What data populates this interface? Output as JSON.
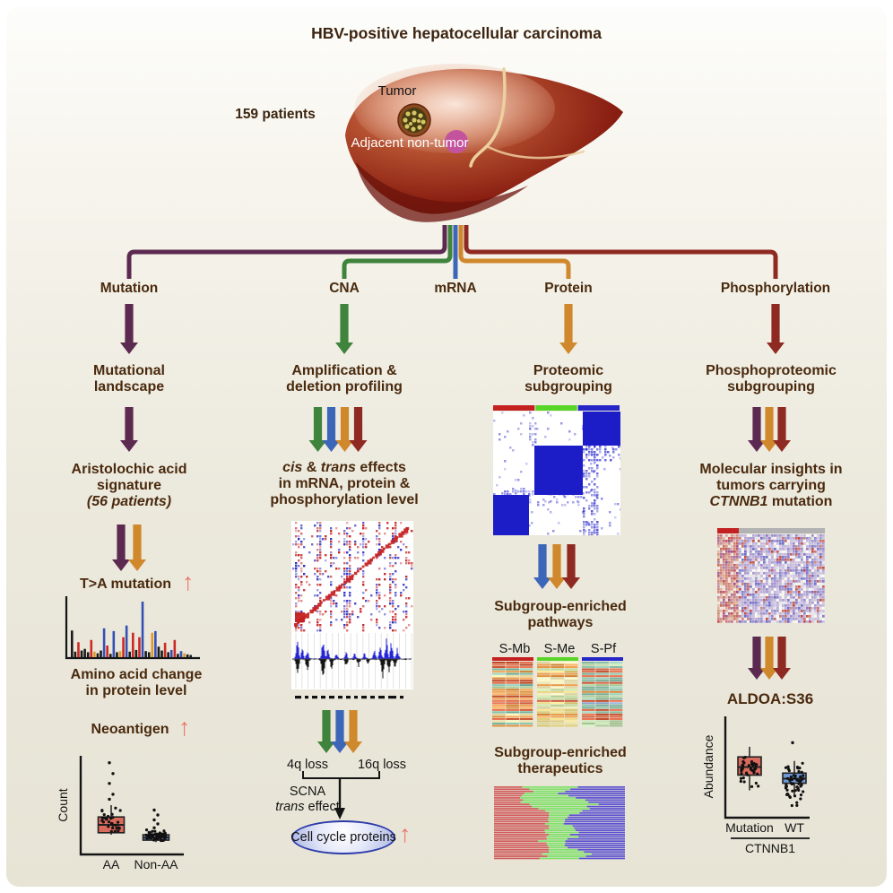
{
  "title": "HBV-positive hepatocellular carcinoma",
  "glyphs": {
    "up": "↑"
  },
  "liver": {
    "patients": "159 patients",
    "tumor": "Tumor",
    "adjacent": "Adjacent non-tumor"
  },
  "branches": {
    "mutation": "Mutation",
    "cna": "CNA",
    "mrna": "mRNA",
    "protein": "Protein",
    "phospho": "Phosphorylation"
  },
  "colors": {
    "mutation": "#5c2a50",
    "cna": "#3f833c",
    "mrna": "#3c66b8",
    "protein": "#d0882c",
    "phospho": "#8f2a22",
    "up_arrow": "#e8776e",
    "heading_text": "#4a2a0e",
    "axis": "#141414",
    "box_red": "#d96a5c",
    "box_blue": "#6f9bd8"
  },
  "mutation_col": {
    "landscape1": "Mutational",
    "landscape2": "landscape",
    "aa1": "Aristolochic acid",
    "aa2": "signature",
    "aa3": "(56 patients)",
    "ta": "T>A mutation",
    "amino1": "Amino acid change",
    "amino2": "in protein level",
    "neoantigen": "Neoantigen",
    "box_ylabel": "Count",
    "box_cat1": "AA",
    "box_cat2": "Non-AA"
  },
  "cna_col": {
    "amp1": "Amplification &",
    "amp2": "deletion profiling",
    "cis": "cis",
    "and_": " & ",
    "trans": "trans",
    "effects": " effects",
    "cis2": "in mRNA, protein &",
    "cis3": "phosphorylation level",
    "loss4q": "4q loss",
    "loss16q": "16q loss",
    "scna": "SCNA",
    "scna_trans": "trans",
    "scna_effect": " effect",
    "ellipse_label": "Cell cycle proteins"
  },
  "protein_col": {
    "sub1": "Proteomic",
    "sub2": "subgrouping",
    "path1": "Subgroup-enriched",
    "path2": "pathways",
    "panels": [
      "S-Mb",
      "S-Me",
      "S-Pf"
    ],
    "thera1": "Subgroup-enriched",
    "thera2": "therapeutics"
  },
  "phospho_col": {
    "sub1": "Phosphoproteomic",
    "sub2": "subgrouping",
    "mol1": "Molecular insights in",
    "mol2": "tumors carrying",
    "mol3_gene": "CTNNB1",
    "mol3_rest": " mutation",
    "aldoa": "ALDOA:S36",
    "box_ylabel": "Abundance",
    "box_cat1": "Mutation",
    "box_cat2": "WT",
    "box_group": "CTNNB1"
  },
  "chart_data": [
    {
      "id": "mutation_spectrum",
      "type": "bar",
      "title": "T>A mutation signature spectrum",
      "xlabel": "",
      "ylabel": "",
      "palette": {
        "k": "#1a1a1a",
        "r": "#cc2a25",
        "b": "#3550b5",
        "o": "#e09a2a"
      },
      "bars": [
        [
          "k",
          0.48
        ],
        [
          "k",
          0.1
        ],
        [
          "r",
          0.27
        ],
        [
          "k",
          0.12
        ],
        [
          "k",
          0.15
        ],
        [
          "k",
          0.09
        ],
        [
          "r",
          0.31
        ],
        [
          "o",
          0.1
        ],
        [
          "k",
          0.07
        ],
        [
          "k",
          0.12
        ],
        [
          "b",
          0.52
        ],
        [
          "r",
          0.21
        ],
        [
          "k",
          0.06
        ],
        [
          "b",
          0.47
        ],
        [
          "k",
          0.09
        ],
        [
          "o",
          0.11
        ],
        [
          "r",
          0.36
        ],
        [
          "b",
          0.57
        ],
        [
          "k",
          0.1
        ],
        [
          "r",
          0.44
        ],
        [
          "k",
          0.13
        ],
        [
          "r",
          0.36
        ],
        [
          "b",
          1.0
        ],
        [
          "k",
          0.11
        ],
        [
          "k",
          0.09
        ],
        [
          "o",
          0.44
        ],
        [
          "b",
          0.47
        ],
        [
          "k",
          0.19
        ],
        [
          "k",
          0.12
        ],
        [
          "r",
          0.26
        ],
        [
          "k",
          0.09
        ],
        [
          "b",
          0.13
        ],
        [
          "r",
          0.31
        ],
        [
          "k",
          0.06
        ],
        [
          "b",
          0.11
        ],
        [
          "o",
          0.07
        ],
        [
          "k",
          0.05
        ],
        [
          "k",
          0.04
        ]
      ]
    },
    {
      "id": "aa_count_boxplot",
      "type": "box",
      "ylabel": "Count",
      "categories": [
        "AA",
        "Non-AA"
      ],
      "note": "relative units 0-1, no numeric ticks shown in figure",
      "groups": [
        {
          "label": "AA",
          "color": "#d96a5c",
          "q1": 0.22,
          "median": 0.3,
          "q3": 0.38,
          "whiskers": [
            0.2,
            0.5
          ],
          "outliers": [
            0.56,
            0.61,
            0.72,
            0.82,
            0.93
          ],
          "n_points": 30,
          "scatter": [
            0.2,
            0.52
          ],
          "seed": 11
        },
        {
          "label": "Non-AA",
          "color": "#6f9bd8",
          "q1": 0.145,
          "median": 0.17,
          "q3": 0.2,
          "whiskers": [
            0.125,
            0.22
          ],
          "outliers": [
            0.27,
            0.31,
            0.35,
            0.4,
            0.45
          ],
          "n_points": 46,
          "scatter": [
            0.12,
            0.26
          ],
          "seed": 12
        }
      ]
    },
    {
      "id": "aldoa_boxplot",
      "type": "box",
      "title": "ALDOA:S36",
      "ylabel": "Abundance",
      "categories": [
        "Mutation",
        "WT"
      ],
      "group_axis_label": "CTNNB1",
      "note": "relative units 0-1, no numeric ticks shown in figure",
      "groups": [
        {
          "label": "Mutation",
          "color": "#d96a5c",
          "q1": 0.42,
          "median": 0.5,
          "q3": 0.6,
          "whiskers": [
            0.27,
            0.7
          ],
          "outliers": [],
          "n_points": 36,
          "scatter": [
            0.26,
            0.7
          ],
          "seed": 21
        },
        {
          "label": "WT",
          "color": "#6f9bd8",
          "q1": 0.34,
          "median": 0.385,
          "q3": 0.44,
          "whiskers": [
            0.22,
            0.56
          ],
          "outliers": [
            0.74
          ],
          "n_points": 54,
          "scatter": [
            0.1,
            0.58
          ],
          "seed": 22
        }
      ]
    },
    {
      "id": "cis_trans_corr_heatmap",
      "type": "heatmap",
      "description": "CNA cis (red diagonal) and trans effect correlation map",
      "colors": {
        "pos": "#c42020",
        "neg": "#2a2ac0"
      },
      "dense_cols": [
        1,
        2,
        3,
        9,
        10,
        14,
        19,
        20,
        21,
        26,
        31,
        32,
        36,
        37,
        38,
        42
      ],
      "seed": 5
    },
    {
      "id": "scna_profile",
      "type": "area",
      "description": "Genome-wide SCNA frequency: gains up (blue), losses down (black)",
      "gain_color": "#2525d8",
      "loss_color": "#141414",
      "peaks_gain": [
        [
          0.05,
          0.85
        ],
        [
          0.09,
          0.5
        ],
        [
          0.13,
          0.4
        ],
        [
          0.26,
          0.95
        ],
        [
          0.3,
          0.45
        ],
        [
          0.37,
          0.3
        ],
        [
          0.45,
          0.3
        ],
        [
          0.52,
          0.25
        ],
        [
          0.6,
          0.3
        ],
        [
          0.68,
          0.45
        ],
        [
          0.73,
          0.6
        ],
        [
          0.78,
          1.0
        ],
        [
          0.82,
          0.75
        ],
        [
          0.87,
          0.5
        ]
      ],
      "peaks_loss": [
        [
          0.05,
          0.7
        ],
        [
          0.13,
          0.5
        ],
        [
          0.26,
          0.9
        ],
        [
          0.33,
          0.35
        ],
        [
          0.45,
          0.25
        ],
        [
          0.55,
          0.3
        ],
        [
          0.63,
          0.2
        ],
        [
          0.75,
          0.95
        ],
        [
          0.8,
          0.55
        ],
        [
          0.85,
          0.3
        ]
      ],
      "seed": 6
    },
    {
      "id": "consensus_matrix",
      "type": "heatmap",
      "description": "Proteomic consensus clustering matrix with 3 subgroups",
      "subgroup_bar": [
        "#c42020",
        "#58d627",
        "#2525c8"
      ],
      "block_color": "#1d1dc8",
      "seed": 9
    },
    {
      "id": "pathway_heatmaps",
      "type": "heatmap",
      "description": "Subgroup-enriched pathway score heatmaps",
      "panels": [
        {
          "label": "S-Mb",
          "bar": "#c42020",
          "seed": 31,
          "weights": [
            [
              "#d4603e",
              0.3
            ],
            [
              "#e89a4a",
              0.3
            ],
            [
              "#f0dfa2",
              0.12
            ],
            [
              "#b5d6a2",
              0.14
            ],
            [
              "#7fc0ac",
              0.14
            ]
          ]
        },
        {
          "label": "S-Me",
          "bar": "#58d627",
          "seed": 32,
          "weights": [
            [
              "#f2eab4",
              0.42
            ],
            [
              "#ead983",
              0.2
            ],
            [
              "#e89a4a",
              0.18
            ],
            [
              "#c8e2a8",
              0.12
            ],
            [
              "#d4603e",
              0.08
            ]
          ]
        },
        {
          "label": "S-Pf",
          "bar": "#2525c8",
          "seed": 33,
          "weights": [
            [
              "#8ec4ae",
              0.34
            ],
            [
              "#bcdcaa",
              0.2
            ],
            [
              "#e89a4a",
              0.2
            ],
            [
              "#d4603e",
              0.16
            ],
            [
              "#9ab2d8",
              0.1
            ]
          ]
        }
      ]
    },
    {
      "id": "therapeutics_bars",
      "type": "bar",
      "orientation": "horizontal-stacked",
      "description": "Subgroup-enriched therapeutics, one horizontal bar per drug",
      "series_colors": [
        "#d05c5c",
        "#7fe069",
        "#5b51d0"
      ],
      "seed": 41
    },
    {
      "id": "ctnnb1_phospho_heatmap",
      "type": "heatmap",
      "description": "Phosphoproteome heatmap; CTNNB1-mutant samples (red bar) vs others (gray bar)",
      "top_bar": [
        {
          "color": "#c42222",
          "frac": 0.2
        },
        {
          "color": "#b2b2b2",
          "frac": 0.8
        }
      ],
      "seed": 51
    }
  ]
}
